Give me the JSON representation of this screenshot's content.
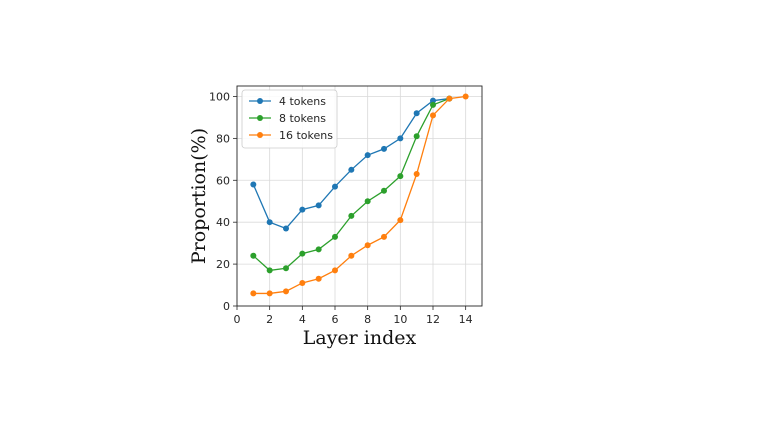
{
  "chart_data": {
    "type": "line",
    "title": "",
    "xlabel": "Layer index",
    "ylabel": "Proportion(%)",
    "xlim": [
      0,
      15
    ],
    "ylim": [
      0,
      105
    ],
    "xticks": [
      0,
      2,
      4,
      6,
      8,
      10,
      12,
      14
    ],
    "yticks": [
      0,
      20,
      40,
      60,
      80,
      100
    ],
    "grid": true,
    "legend_position": "top-left",
    "series": [
      {
        "name": "4 tokens",
        "color": "#1f77b4",
        "x": [
          1,
          2,
          3,
          4,
          5,
          6,
          7,
          8,
          9,
          10,
          11,
          12,
          13
        ],
        "y": [
          58,
          40,
          37,
          46,
          48,
          57,
          65,
          72,
          75,
          80,
          92,
          98,
          99
        ]
      },
      {
        "name": "8 tokens",
        "color": "#2ca02c",
        "x": [
          1,
          2,
          3,
          4,
          5,
          6,
          7,
          8,
          9,
          10,
          11,
          12,
          13
        ],
        "y": [
          24,
          17,
          18,
          25,
          27,
          33,
          43,
          50,
          55,
          62,
          81,
          96,
          99
        ]
      },
      {
        "name": "16 tokens",
        "color": "#ff7f0e",
        "x": [
          1,
          2,
          3,
          4,
          5,
          6,
          7,
          8,
          9,
          10,
          11,
          12,
          13,
          14
        ],
        "y": [
          6,
          6,
          7,
          11,
          13,
          17,
          24,
          29,
          33,
          41,
          63,
          91,
          99,
          100
        ]
      }
    ]
  }
}
